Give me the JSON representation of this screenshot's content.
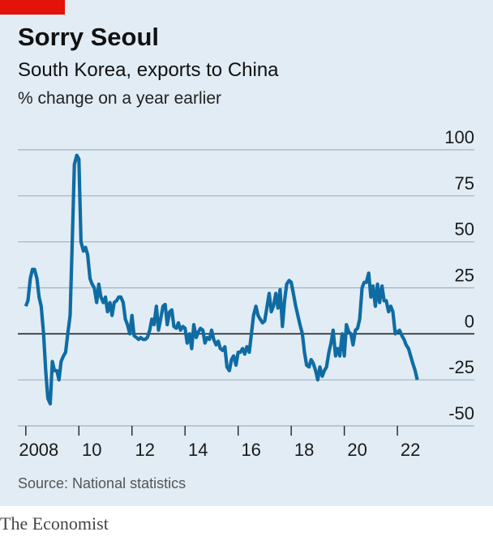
{
  "chart_data": {
    "type": "line",
    "title": "Sorry Seoul",
    "subtitle": "South Korea, exports to China",
    "y_label": "% change on a year earlier",
    "source": "Source: National statistics",
    "brand": "The Economist",
    "color": "#0f6ca3",
    "grid": true,
    "xlim": [
      2007.7,
      2024.9
    ],
    "ylim": [
      -50,
      100
    ],
    "yticks": [
      -50,
      -25,
      0,
      25,
      50,
      75,
      100
    ],
    "xticks": [
      {
        "value": 2008,
        "label": "2008"
      },
      {
        "value": 2010,
        "label": "10"
      },
      {
        "value": 2012,
        "label": "12"
      },
      {
        "value": 2014,
        "label": "14"
      },
      {
        "value": 2016,
        "label": "16"
      },
      {
        "value": 2018,
        "label": "18"
      },
      {
        "value": 2020,
        "label": "20"
      },
      {
        "value": 2022,
        "label": "22"
      }
    ],
    "x": [
      2008.0,
      2008.08,
      2008.17,
      2008.25,
      2008.33,
      2008.42,
      2008.5,
      2008.58,
      2008.67,
      2008.75,
      2008.83,
      2008.92,
      2009.0,
      2009.08,
      2009.17,
      2009.25,
      2009.33,
      2009.42,
      2009.5,
      2009.58,
      2009.67,
      2009.75,
      2009.83,
      2009.92,
      2010.0,
      2010.08,
      2010.17,
      2010.25,
      2010.33,
      2010.42,
      2010.5,
      2010.58,
      2010.67,
      2010.75,
      2010.83,
      2010.92,
      2011.0,
      2011.08,
      2011.17,
      2011.25,
      2011.33,
      2011.42,
      2011.5,
      2011.58,
      2011.67,
      2011.75,
      2011.83,
      2011.92,
      2012.0,
      2012.08,
      2012.17,
      2012.25,
      2012.33,
      2012.42,
      2012.5,
      2012.58,
      2012.67,
      2012.75,
      2012.83,
      2012.92,
      2013.0,
      2013.08,
      2013.17,
      2013.25,
      2013.33,
      2013.42,
      2013.5,
      2013.58,
      2013.67,
      2013.75,
      2013.83,
      2013.92,
      2014.0,
      2014.08,
      2014.17,
      2014.25,
      2014.33,
      2014.42,
      2014.5,
      2014.58,
      2014.67,
      2014.75,
      2014.83,
      2014.92,
      2015.0,
      2015.08,
      2015.17,
      2015.25,
      2015.33,
      2015.42,
      2015.5,
      2015.58,
      2015.67,
      2015.75,
      2015.83,
      2015.92,
      2016.0,
      2016.08,
      2016.17,
      2016.25,
      2016.33,
      2016.42,
      2016.5,
      2016.58,
      2016.67,
      2016.75,
      2016.83,
      2016.92,
      2017.0,
      2017.08,
      2017.17,
      2017.25,
      2017.33,
      2017.42,
      2017.5,
      2017.58,
      2017.67,
      2017.75,
      2017.83,
      2017.92,
      2018.0,
      2018.08,
      2018.17,
      2018.25,
      2018.33,
      2018.42,
      2018.5,
      2018.58,
      2018.67,
      2018.75,
      2018.83,
      2018.92,
      2019.0,
      2019.08,
      2019.17,
      2019.25,
      2019.33,
      2019.42,
      2019.5,
      2019.58,
      2019.67,
      2019.75,
      2019.83,
      2019.92,
      2020.0,
      2020.08,
      2020.17,
      2020.25,
      2020.33,
      2020.42,
      2020.5,
      2020.58,
      2020.67,
      2020.75,
      2020.83,
      2020.92,
      2021.0,
      2021.08,
      2021.17,
      2021.25,
      2021.33,
      2021.42,
      2021.5,
      2021.58,
      2021.67,
      2021.75,
      2021.83,
      2021.92,
      2022.0,
      2022.08,
      2022.17,
      2022.25,
      2022.33,
      2022.42,
      2022.5,
      2022.58,
      2022.67,
      2022.75
    ],
    "values": [
      15,
      18,
      30,
      35,
      35,
      30,
      20,
      15,
      0,
      -20,
      -35,
      -38,
      -15,
      -20,
      -20,
      -25,
      -15,
      -12,
      -10,
      0,
      10,
      50,
      92,
      97,
      95,
      50,
      45,
      47,
      43,
      30,
      27,
      25,
      17,
      27,
      20,
      17,
      20,
      12,
      17,
      10,
      17,
      18,
      20,
      20,
      17,
      8,
      5,
      0,
      10,
      -1,
      -2,
      -3,
      -2,
      -3,
      -3,
      -2,
      2,
      8,
      5,
      15,
      2,
      8,
      15,
      16,
      5,
      12,
      13,
      4,
      3,
      6,
      2,
      4,
      3,
      -5,
      0,
      -8,
      5,
      -2,
      1,
      3,
      2,
      -5,
      -2,
      -3,
      2,
      -3,
      -6,
      -4,
      -8,
      -9,
      -7,
      -18,
      -20,
      -14,
      -12,
      -17,
      -10,
      -10,
      -8,
      -11,
      -7,
      -10,
      0,
      10,
      15,
      10,
      8,
      6,
      7,
      14,
      22,
      12,
      15,
      22,
      14,
      24,
      4,
      18,
      27,
      29,
      28,
      22,
      15,
      10,
      5,
      0,
      -10,
      -17,
      -18,
      -14,
      -16,
      -20,
      -25,
      -18,
      -23,
      -20,
      -18,
      -10,
      -5,
      2,
      -12,
      -8,
      -12,
      0,
      -12,
      5,
      1,
      0,
      -6,
      2,
      3,
      8,
      25,
      28,
      28,
      33,
      20,
      26,
      15,
      27,
      17,
      26,
      18,
      18,
      12,
      15,
      12,
      0,
      1,
      2,
      -1,
      -3,
      -6,
      -8,
      -12,
      -16,
      -20,
      -25
    ]
  }
}
